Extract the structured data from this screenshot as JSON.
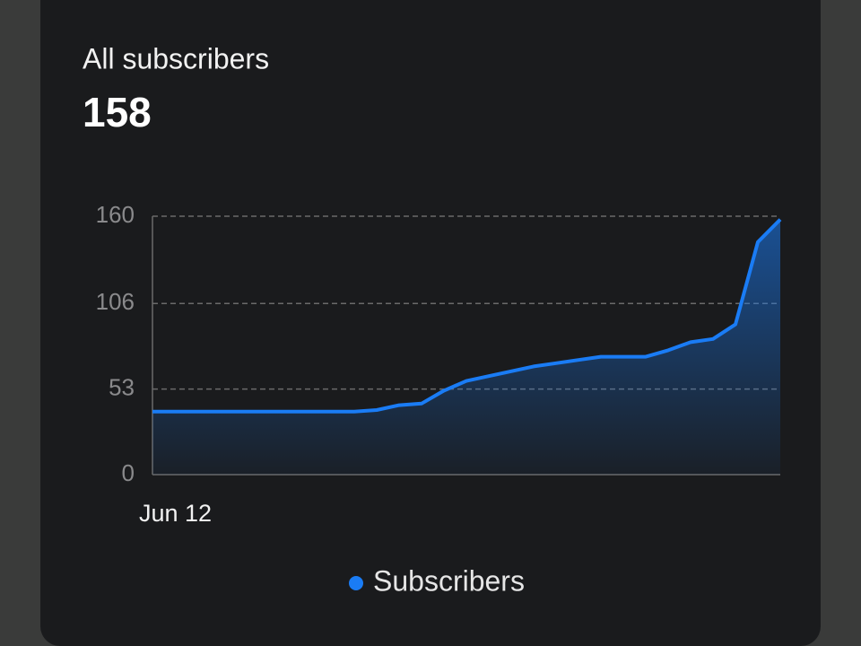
{
  "chart_data": {
    "type": "line",
    "title": "All subscribers",
    "headline_value": 158,
    "categories": [
      "Jun 12",
      null,
      null,
      null,
      null,
      null,
      null,
      null,
      null,
      null,
      null,
      null,
      null,
      null,
      null,
      null,
      null,
      null,
      null,
      null,
      null,
      null,
      null,
      null,
      null,
      null,
      null,
      null,
      null
    ],
    "series": [
      {
        "name": "Subscribers",
        "color": "#1a7cf5",
        "values": [
          39,
          39,
          39,
          39,
          39,
          39,
          39,
          39,
          39,
          39,
          40,
          43,
          44,
          52,
          58,
          61,
          64,
          67,
          69,
          71,
          73,
          73,
          73,
          77,
          82,
          84,
          93,
          144,
          158
        ]
      }
    ],
    "ylim": [
      0,
      160
    ],
    "yticks": [
      0,
      53,
      106,
      160
    ],
    "grid": true,
    "legend": "bottom"
  }
}
